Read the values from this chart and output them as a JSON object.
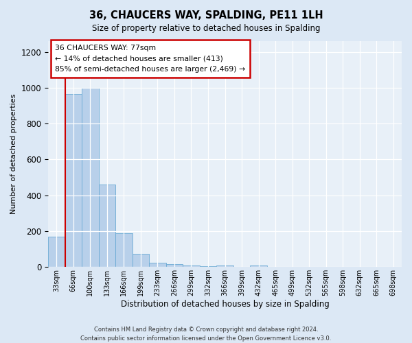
{
  "title": "36, CHAUCERS WAY, SPALDING, PE11 1LH",
  "subtitle": "Size of property relative to detached houses in Spalding",
  "xlabel": "Distribution of detached houses by size in Spalding",
  "ylabel": "Number of detached properties",
  "bar_labels": [
    "33sqm",
    "66sqm",
    "100sqm",
    "133sqm",
    "166sqm",
    "199sqm",
    "233sqm",
    "266sqm",
    "299sqm",
    "332sqm",
    "366sqm",
    "399sqm",
    "432sqm",
    "465sqm",
    "499sqm",
    "532sqm",
    "565sqm",
    "598sqm",
    "632sqm",
    "665sqm",
    "698sqm"
  ],
  "bar_heights": [
    170,
    965,
    1000,
    460,
    190,
    75,
    25,
    15,
    10,
    5,
    10,
    0,
    10,
    0,
    0,
    0,
    0,
    0,
    0,
    0,
    0
  ],
  "bar_color": "#b8d0ea",
  "bar_edge_color": "#6aaad4",
  "ylim": [
    0,
    1260
  ],
  "yticks": [
    0,
    200,
    400,
    600,
    800,
    1000,
    1200
  ],
  "property_line_x": 1.0,
  "property_line_color": "#cc0000",
  "annotation_title": "36 CHAUCERS WAY: 77sqm",
  "annotation_line1": "← 14% of detached houses are smaller (413)",
  "annotation_line2": "85% of semi-detached houses are larger (2,469) →",
  "annotation_box_color": "#ffffff",
  "annotation_box_edge_color": "#cc0000",
  "footnote1": "Contains HM Land Registry data © Crown copyright and database right 2024.",
  "footnote2": "Contains public sector information licensed under the Open Government Licence v3.0.",
  "bg_color": "#dce8f5",
  "plot_bg_color": "#e8f0f8"
}
